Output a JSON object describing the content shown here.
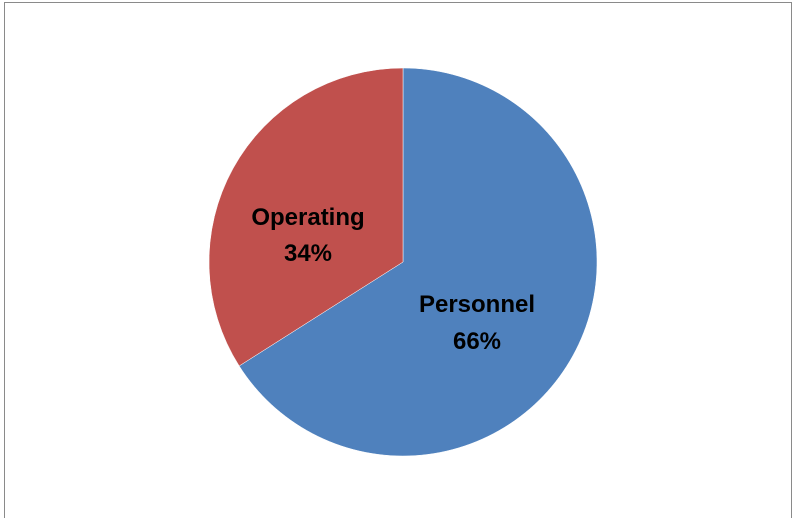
{
  "chart_data": {
    "type": "pie",
    "title": "",
    "slices": [
      {
        "label": "Personnel",
        "value": 66,
        "value_label": "66%",
        "color": "#4F81BD"
      },
      {
        "label": "Operating",
        "value": 34,
        "value_label": "34%",
        "color": "#C0504D"
      }
    ],
    "start_angle_deg": 0,
    "direction": "clockwise",
    "legend": "none"
  }
}
